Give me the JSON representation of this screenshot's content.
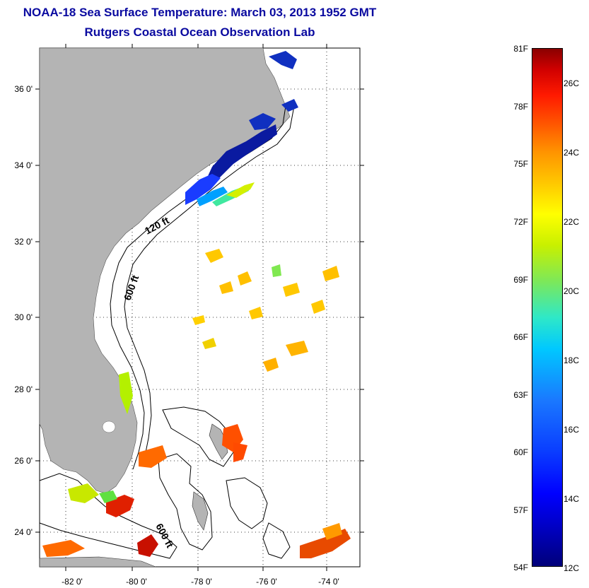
{
  "title": {
    "line1": "NOAA-18 Sea Surface Temperature:  March 03, 2013 1952 GMT",
    "line2": "Rutgers Coastal Ocean Observation Lab"
  },
  "map": {
    "lat_labels": [
      "36 0'",
      "34 0'",
      "32 0'",
      "30 0'",
      "28 0'",
      "26 0'",
      "24 0'"
    ],
    "lon_labels": [
      "-82 0'",
      "-80 0'",
      "-78 0'",
      "-76 0'",
      "-74 0'"
    ],
    "contour_labels": [
      "120 ft",
      "600 ft",
      "600 ft"
    ],
    "colors": {
      "land": "#b4b4b4",
      "ocean": "#ffffff",
      "contour": "#000000"
    }
  },
  "colorbar": {
    "fahrenheit": [
      "81F",
      "78F",
      "75F",
      "72F",
      "69F",
      "66F",
      "63F",
      "60F",
      "57F",
      "54F"
    ],
    "celsius": [
      "26C",
      "24C",
      "22C",
      "20C",
      "18C",
      "16C",
      "14C",
      "12C"
    ],
    "range_f": [
      54,
      81
    ],
    "range_c": [
      12,
      27
    ]
  }
}
